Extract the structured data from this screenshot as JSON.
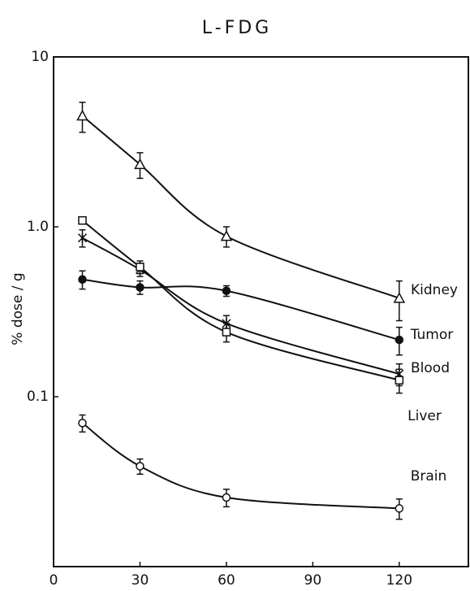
{
  "chart_data": {
    "type": "line",
    "title": "L-FDG",
    "y_label": "% dose / g",
    "x": [
      10,
      30,
      60,
      120
    ],
    "xlim": [
      0,
      144
    ],
    "xticks": [
      0,
      30,
      60,
      90,
      120
    ],
    "ylim": [
      0.01,
      10
    ],
    "yticks": [
      10,
      {
        "value": 1,
        "label": "1.0"
      },
      0.1
    ],
    "log_y": true,
    "series": [
      {
        "name": "Kidney",
        "marker": "triangle",
        "color": "#111",
        "values": [
          4.5,
          2.33,
          0.88,
          0.38
        ],
        "errors": [
          0.9,
          0.4,
          0.12,
          0.1
        ]
      },
      {
        "name": "Tumor",
        "marker": "filled-circle",
        "color": "#111",
        "values": [
          0.49,
          0.44,
          0.42,
          0.216
        ],
        "errors": [
          0.06,
          0.04,
          0.03,
          0.04
        ]
      },
      {
        "name": "Blood",
        "marker": "asterisk",
        "color": "#111",
        "values": [
          0.86,
          0.56,
          0.27,
          0.136
        ],
        "errors": [
          0.1,
          0.05,
          0.03,
          0.02
        ]
      },
      {
        "name": "Liver",
        "marker": "square",
        "color": "#111",
        "values": [
          1.09,
          0.58,
          0.24,
          0.125
        ],
        "errors": [
          0.05,
          0.05,
          0.03,
          0.02
        ]
      },
      {
        "name": "Brain",
        "marker": "circle",
        "color": "#111",
        "values": [
          0.07,
          0.039,
          0.0255,
          0.022
        ],
        "errors": [
          0.008,
          0.004,
          0.003,
          0.003
        ]
      }
    ]
  }
}
